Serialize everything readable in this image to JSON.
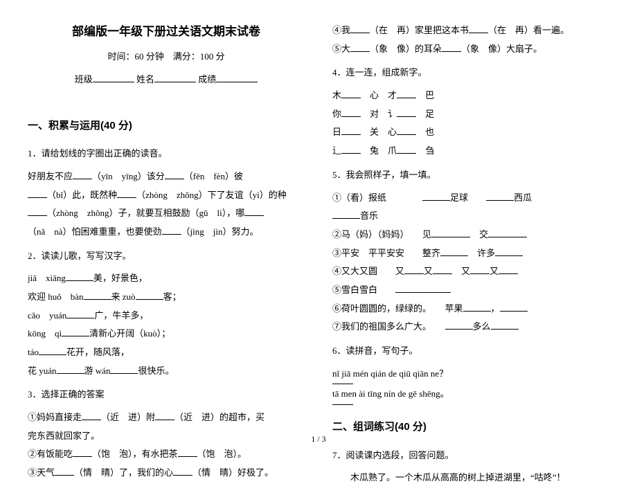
{
  "header": {
    "title": "部编版一年级下册过关语文期末试卷",
    "subtitle": "时间：60 分钟　满分：100 分",
    "class_label": "班级",
    "name_label": "姓名",
    "score_label": "成绩"
  },
  "section1": {
    "heading": "一、积累与运用(40 分)"
  },
  "q1": {
    "prompt": "1．请给划线的字圈出正确的读音。",
    "l1a": "好朋友不应",
    "l1b": "（yīn　yīng）该分",
    "l1c": "（fēn　fèn）彼",
    "l2a": "（bǐ）此，既然种",
    "l2b": "（zhòng　zhǒng）下了友谊（yì）的种",
    "l3a": "（zhòng　zhǒng）子，就要互相鼓励（gǔ　lì），哪",
    "l4a": "（nǎ　nà）怕困难重重，也要使劲",
    "l4b": "（jìng　jìn）努力。"
  },
  "q2": {
    "prompt": "2．读读儿歌，写写汉字。",
    "l1a": "jiā　xiāng",
    "l1b": "美，好景色，",
    "l2a": "欢迎 huǒ　bàn",
    "l2b": "来 zuò",
    "l2c": "客；",
    "l3a": "cǎo　yuán",
    "l3b": "广，牛羊多，",
    "l4a": "kōng　qì",
    "l4b": "清新心开阔（kuò）；",
    "l5a": "táo",
    "l5b": "花开，随风落，",
    "l6a": "花 yuán",
    "l6b": "游 wán",
    "l6c": "很快乐。"
  },
  "q3": {
    "prompt": "3．选择正确的答案",
    "l1a": "①妈妈直接走",
    "l1b": "（近　进）附",
    "l1c": "（近　进）的超市，买",
    "l1d": "完东西就回家了。",
    "l2a": "②有饭能吃",
    "l2b": "（饱　泡），有水把茶",
    "l2c": "（饱　泡）。",
    "l3a": "③天气",
    "l3b": "（情　晴）了，我们的心",
    "l3c": "（情　晴）好极了。"
  },
  "r_top": {
    "l1a": "④我",
    "l1b": "（在　再）家里把这本书",
    "l1c": "（在　再）看一遍。",
    "l2a": "⑤大",
    "l2b": "（象　像）的耳朵",
    "l2c": "（象　像）大扇子。"
  },
  "q4": {
    "prompt": "4．连一连，组成新字。",
    "l1": "木",
    "l1b": "心　才",
    "l1c": "巴",
    "l2": "你",
    "l2b": "对　讠",
    "l2c": "足",
    "l3": "日",
    "l3b": "关　心",
    "l3c": "也",
    "l4": "辶",
    "l4b": "兔　爪",
    "l4c": "刍"
  },
  "q5": {
    "prompt": "5．我会照样子，填一填。",
    "l1a": "①（看）报纸",
    "l1b": "足球",
    "l1c": "西瓜",
    "l1d": "音乐",
    "l2a": "②马（妈）（妈妈）",
    "l2b": "见",
    "l2c": "交",
    "l3a": "③平安　平平安安",
    "l3b": "整齐",
    "l3c": "许多",
    "l4a": "④又大又圆",
    "l4b": "又",
    "l4c": "又",
    "l4d": "又",
    "l4e": "又",
    "l5a": "⑤雪白雪白",
    "l6a": "⑥荷叶圆圆的，绿绿的。",
    "l6b": "苹果",
    "l7a": "⑦我们的祖国多么广大。",
    "l7b": "多么"
  },
  "q6": {
    "prompt": "6．读拼音，写句子。",
    "l1": "nǐ jiā mén qián de qiū qiān ne？",
    "l2": "tā men ài tīng nín de gē shēng。"
  },
  "section2": {
    "heading": "二、组词练习(40 分)"
  },
  "q7": {
    "prompt": "7．阅读课内选段，回答问题。",
    "body": "木瓜熟了。一个木瓜从高高的树上掉进湖里，“咕咚”！"
  },
  "footer": {
    "page": "1 / 3"
  }
}
